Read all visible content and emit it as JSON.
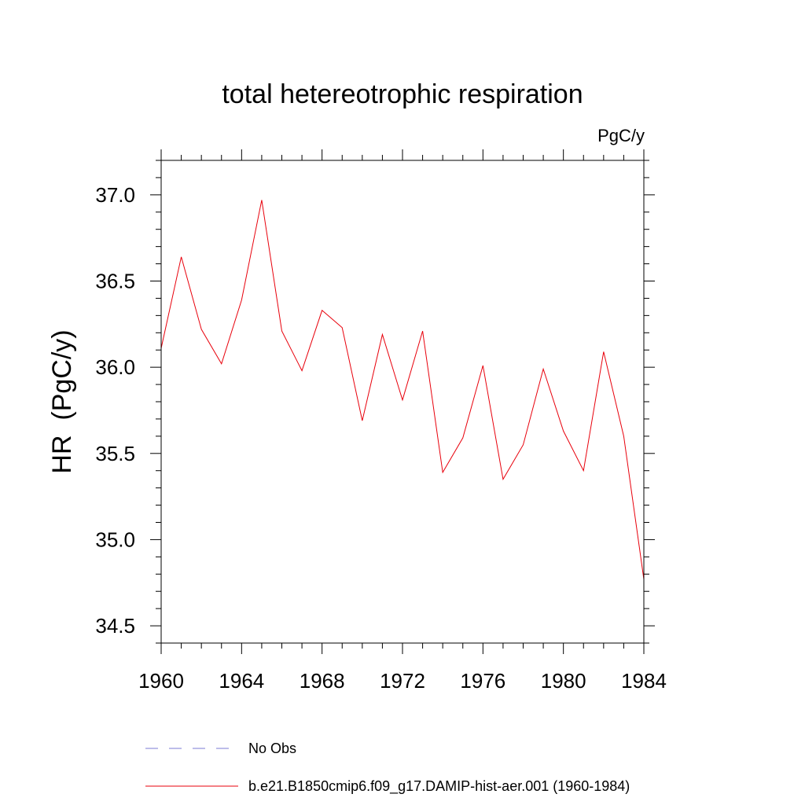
{
  "chart_data": {
    "type": "line",
    "title": "total hetereotrophic respiration",
    "units_label": "PgC/y",
    "xlabel": "",
    "ylabel": "HR  (PgC/y)",
    "xlim": [
      1960,
      1984
    ],
    "ylim": [
      34.4,
      37.2
    ],
    "x_ticks": [
      1960,
      1964,
      1968,
      1972,
      1976,
      1980,
      1984
    ],
    "x_tick_labels": [
      "1960",
      "1964",
      "1968",
      "1972",
      "1976",
      "1980",
      "1984"
    ],
    "y_ticks": [
      34.5,
      35.0,
      35.5,
      36.0,
      36.5,
      37.0
    ],
    "y_tick_labels": [
      "34.5",
      "35.0",
      "35.5",
      "36.0",
      "36.5",
      "37.0"
    ],
    "grid": false,
    "legend_position": "bottom",
    "series": [
      {
        "name": "b.e21.B1850cmip6.f09_g17.DAMIP-hist-aer.001 (1960-1984)",
        "color": "#e8000b",
        "line_style": "solid",
        "x": [
          1960,
          1961,
          1962,
          1963,
          1964,
          1965,
          1966,
          1967,
          1968,
          1969,
          1970,
          1971,
          1972,
          1973,
          1974,
          1975,
          1976,
          1977,
          1978,
          1979,
          1980,
          1981,
          1982,
          1983,
          1984
        ],
        "y": [
          36.11,
          36.64,
          36.22,
          36.02,
          36.39,
          36.97,
          36.21,
          35.98,
          36.33,
          36.23,
          35.69,
          36.19,
          35.81,
          36.21,
          35.39,
          35.59,
          36.01,
          35.35,
          35.55,
          35.99,
          35.63,
          35.4,
          36.09,
          35.6,
          34.77
        ]
      },
      {
        "name": "No Obs",
        "color": "#7b7bd6",
        "line_style": "dashed",
        "x": [],
        "y": []
      }
    ]
  }
}
